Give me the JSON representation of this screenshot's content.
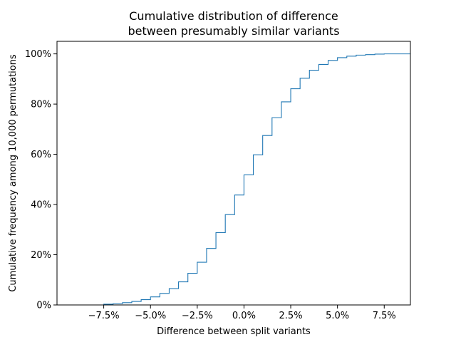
{
  "chart_data": {
    "type": "line",
    "style": "step",
    "title_lines": [
      "Cumulative distribution of difference",
      "between presumably similar variants"
    ],
    "xlabel": "Difference between split variants",
    "ylabel": "Cumulative frequency among 10,000 permutations",
    "xlim": [
      -10.0,
      8.9
    ],
    "ylim": [
      0,
      105
    ],
    "x_ticks": [
      {
        "value": -7.5,
        "label": "−7.5%"
      },
      {
        "value": -5.0,
        "label": "−5.0%"
      },
      {
        "value": -2.5,
        "label": "−2.5%"
      },
      {
        "value": 0.0,
        "label": "0.0%"
      },
      {
        "value": 2.5,
        "label": "2.5%"
      },
      {
        "value": 5.0,
        "label": "5.0%"
      },
      {
        "value": 7.5,
        "label": "7.5%"
      }
    ],
    "y_ticks": [
      {
        "value": 0,
        "label": "0%"
      },
      {
        "value": 20,
        "label": "20%"
      },
      {
        "value": 40,
        "label": "40%"
      },
      {
        "value": 60,
        "label": "60%"
      },
      {
        "value": 80,
        "label": "80%"
      },
      {
        "value": 100,
        "label": "100%"
      }
    ],
    "grid": false,
    "line_color": "#1f77b4",
    "series": [
      {
        "x": [
          -8.0,
          -7.5,
          -7.0,
          -6.5,
          -6.0,
          -5.5,
          -5.0,
          -4.5,
          -4.0,
          -3.5,
          -3.0,
          -2.5,
          -2.0,
          -1.5,
          -1.0,
          -0.5,
          0.0,
          0.5,
          1.0,
          1.5,
          2.0,
          2.5,
          3.0,
          3.5,
          4.0,
          4.5,
          5.0,
          5.5,
          6.0,
          6.5,
          7.0,
          7.5,
          8.0,
          8.9
        ],
        "y": [
          0,
          0.3,
          0.5,
          0.9,
          1.4,
          2.1,
          3.2,
          4.6,
          6.5,
          9.2,
          12.6,
          17.0,
          22.5,
          28.8,
          36.0,
          43.8,
          51.8,
          59.8,
          67.5,
          74.6,
          80.9,
          86.1,
          90.3,
          93.5,
          95.8,
          97.4,
          98.5,
          99.1,
          99.5,
          99.7,
          99.9,
          100,
          100,
          100
        ]
      }
    ]
  }
}
